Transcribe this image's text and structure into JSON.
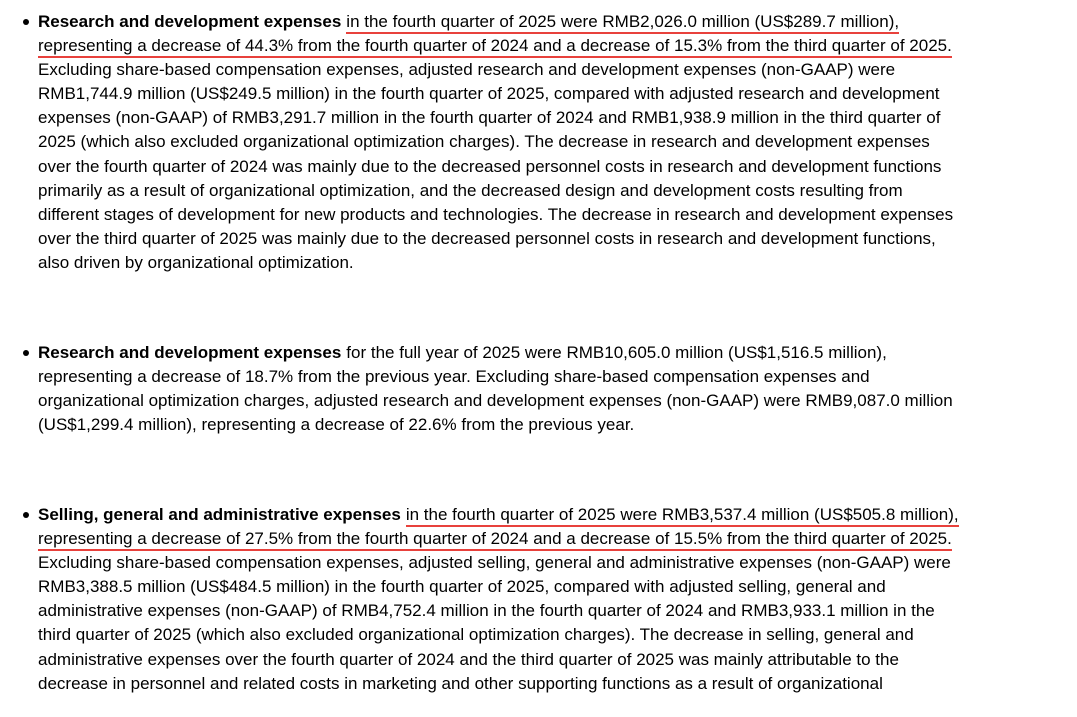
{
  "bullets": [
    {
      "lead": "Research and development expenses",
      "lines": [
        "in the fourth quarter of 2025 were RMB2,026.0 million (US$289.7 million),",
        "representing a decrease of 44.3% from the fourth quarter of 2024 and a decrease of 15.3% from the third quarter of 2025.",
        "Excluding share-based compensation expenses, adjusted research and development expenses (non-GAAP) were",
        "RMB1,744.9 million (US$249.5 million) in the fourth quarter of 2025, compared with adjusted research and development",
        "expenses (non-GAAP) of RMB3,291.7 million in the fourth quarter of 2024 and RMB1,938.9 million in the third quarter of",
        "2025 (which also excluded organizational optimization charges). The decrease in research and development expenses",
        "over the fourth quarter of 2024 was mainly due to the decreased personnel costs in research and development functions",
        "primarily as a result of organizational optimization, and the decreased design and development costs resulting from",
        "different stages of development for new products and technologies. The decrease in research and development expenses",
        "over the third quarter of 2025 was mainly due to the decreased personnel costs in research and development functions,",
        "also driven by organizational optimization."
      ]
    },
    {
      "lead": "Research and development expenses",
      "lines": [
        "for the full year of 2025 were RMB10,605.0 million (US$1,516.5 million),",
        "representing a decrease of 18.7% from the previous year. Excluding share-based compensation expenses and",
        "organizational optimization charges, adjusted research and development expenses (non-GAAP) were RMB9,087.0 million",
        "(US$1,299.4 million), representing a decrease of 22.6% from the previous year."
      ]
    },
    {
      "lead": "Selling, general and administrative expenses",
      "lines": [
        "in the fourth quarter of 2025 were RMB3,537.4 million (US$505.8 million),",
        "representing a decrease of 27.5% from the fourth quarter of 2024 and a decrease of 15.5% from the third quarter of 2025.",
        "Excluding share-based compensation expenses, adjusted selling, general and administrative expenses (non-GAAP) were",
        "RMB3,388.5 million (US$484.5 million) in the fourth quarter of 2025, compared with adjusted selling, general and",
        "administrative expenses (non-GAAP) of RMB4,752.4 million in the fourth quarter of 2024 and RMB3,933.1 million in the",
        "third quarter of 2025 (which also excluded organizational optimization charges). The decrease in selling, general and",
        "administrative expenses over the fourth quarter of 2024 and the third quarter of 2025 was mainly attributable to the",
        "decrease in personnel and related costs in marketing and other supporting functions as a result of organizational"
      ]
    }
  ]
}
